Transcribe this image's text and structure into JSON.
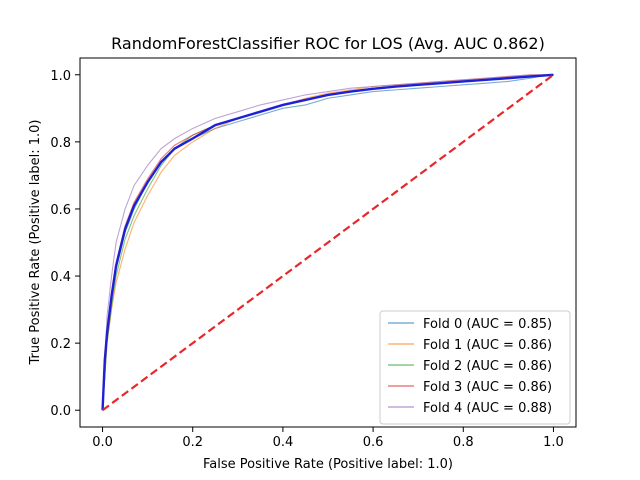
{
  "chart_data": {
    "type": "line",
    "title": "RandomForestClassifier ROC for LOS (Avg. AUC 0.862)",
    "xlabel": "False Positive Rate (Positive label: 1.0)",
    "ylabel": "True Positive Rate (Positive label: 1.0)",
    "xlim": [
      -0.05,
      1.05
    ],
    "ylim": [
      -0.05,
      1.05
    ],
    "xticks": [
      "0.0",
      "0.2",
      "0.4",
      "0.6",
      "0.8",
      "1.0"
    ],
    "yticks": [
      "0.0",
      "0.2",
      "0.4",
      "0.6",
      "0.8",
      "1.0"
    ],
    "grid": false,
    "legend_position": "lower-right",
    "series": [
      {
        "name": "Fold 0 (AUC = 0.85)",
        "color": "#1f77b4",
        "x": [
          0,
          0.01,
          0.02,
          0.03,
          0.05,
          0.07,
          0.1,
          0.13,
          0.16,
          0.2,
          0.25,
          0.3,
          0.35,
          0.4,
          0.45,
          0.5,
          0.55,
          0.6,
          0.65,
          0.7,
          0.75,
          0.8,
          0.85,
          0.9,
          0.95,
          0.97,
          1.0
        ],
        "y": [
          0,
          0.22,
          0.33,
          0.42,
          0.53,
          0.6,
          0.68,
          0.74,
          0.78,
          0.81,
          0.84,
          0.86,
          0.88,
          0.9,
          0.91,
          0.93,
          0.94,
          0.95,
          0.955,
          0.96,
          0.965,
          0.97,
          0.975,
          0.98,
          0.99,
          0.995,
          1.0
        ]
      },
      {
        "name": "Fold 1 (AUC = 0.86)",
        "color": "#ff7f0e",
        "x": [
          0,
          0.01,
          0.02,
          0.03,
          0.05,
          0.07,
          0.1,
          0.13,
          0.16,
          0.2,
          0.25,
          0.3,
          0.35,
          0.4,
          0.45,
          0.5,
          0.55,
          0.6,
          0.65,
          0.7,
          0.75,
          0.8,
          0.85,
          0.9,
          0.95,
          1.0
        ],
        "y": [
          0,
          0.2,
          0.3,
          0.38,
          0.48,
          0.56,
          0.64,
          0.71,
          0.76,
          0.8,
          0.84,
          0.87,
          0.89,
          0.91,
          0.93,
          0.945,
          0.955,
          0.965,
          0.97,
          0.975,
          0.98,
          0.985,
          0.99,
          0.995,
          1.0,
          1.0
        ]
      },
      {
        "name": "Fold 2 (AUC = 0.86)",
        "color": "#2ca02c",
        "x": [
          0,
          0.01,
          0.02,
          0.03,
          0.05,
          0.07,
          0.1,
          0.13,
          0.16,
          0.2,
          0.25,
          0.3,
          0.35,
          0.4,
          0.45,
          0.5,
          0.55,
          0.6,
          0.65,
          0.7,
          0.75,
          0.8,
          0.85,
          0.9,
          0.95,
          1.0
        ],
        "y": [
          0,
          0.2,
          0.31,
          0.4,
          0.51,
          0.58,
          0.66,
          0.73,
          0.78,
          0.82,
          0.85,
          0.87,
          0.89,
          0.91,
          0.925,
          0.94,
          0.95,
          0.96,
          0.965,
          0.97,
          0.975,
          0.98,
          0.985,
          0.99,
          0.995,
          1.0
        ]
      },
      {
        "name": "Fold 3 (AUC = 0.86)",
        "color": "#d62728",
        "x": [
          0,
          0.01,
          0.02,
          0.03,
          0.05,
          0.07,
          0.1,
          0.13,
          0.16,
          0.2,
          0.25,
          0.3,
          0.35,
          0.4,
          0.45,
          0.5,
          0.55,
          0.6,
          0.65,
          0.7,
          0.75,
          0.8,
          0.85,
          0.9,
          0.95,
          1.0
        ],
        "y": [
          0,
          0.24,
          0.35,
          0.44,
          0.55,
          0.62,
          0.69,
          0.75,
          0.79,
          0.82,
          0.85,
          0.87,
          0.89,
          0.91,
          0.925,
          0.94,
          0.95,
          0.96,
          0.965,
          0.97,
          0.975,
          0.98,
          0.985,
          0.99,
          0.995,
          1.0
        ]
      },
      {
        "name": "Fold 4 (AUC = 0.88)",
        "color": "#9467bd",
        "x": [
          0,
          0.01,
          0.02,
          0.03,
          0.05,
          0.07,
          0.1,
          0.13,
          0.16,
          0.2,
          0.25,
          0.3,
          0.35,
          0.4,
          0.45,
          0.5,
          0.55,
          0.6,
          0.65,
          0.7,
          0.75,
          0.8,
          0.85,
          0.9,
          0.95,
          1.0
        ],
        "y": [
          0,
          0.28,
          0.4,
          0.5,
          0.6,
          0.67,
          0.73,
          0.78,
          0.81,
          0.84,
          0.87,
          0.89,
          0.91,
          0.925,
          0.94,
          0.95,
          0.96,
          0.965,
          0.97,
          0.975,
          0.98,
          0.985,
          0.99,
          0.995,
          1.0,
          1.0
        ]
      }
    ],
    "mean_curve": {
      "color": "#1f1fd6",
      "x": [
        0,
        0.005,
        0.01,
        0.02,
        0.03,
        0.05,
        0.07,
        0.1,
        0.13,
        0.16,
        0.2,
        0.25,
        0.3,
        0.35,
        0.4,
        0.45,
        0.5,
        0.55,
        0.6,
        0.65,
        0.7,
        0.75,
        0.8,
        0.85,
        0.9,
        0.95,
        1.0
      ],
      "y": [
        0,
        0.15,
        0.23,
        0.34,
        0.43,
        0.54,
        0.61,
        0.68,
        0.74,
        0.78,
        0.81,
        0.85,
        0.87,
        0.89,
        0.91,
        0.925,
        0.94,
        0.95,
        0.958,
        0.965,
        0.97,
        0.975,
        0.98,
        0.985,
        0.99,
        0.995,
        1.0
      ]
    },
    "chance_line": {
      "color": "#e8272a",
      "x": [
        0,
        1
      ],
      "y": [
        0,
        1
      ]
    }
  }
}
